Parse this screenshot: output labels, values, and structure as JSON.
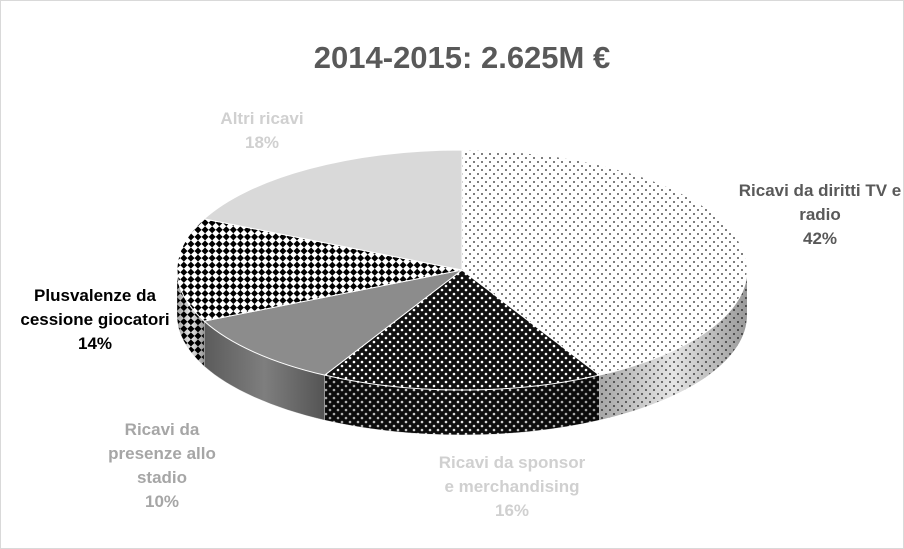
{
  "chart_data": {
    "type": "pie3d",
    "title": "2014-2015: 2.625M €",
    "categories": [
      "Ricavi da diritti TV e radio",
      "Ricavi da sponsor e merchandising",
      "Ricavi da presenze allo stadio",
      "Plusvalenze da cessione giocatori",
      "Altri ricavi"
    ],
    "values": [
      42,
      16,
      10,
      14,
      18
    ],
    "value_labels": [
      "42%",
      "16%",
      "10%",
      "14%",
      "18%"
    ],
    "colors": [
      "#ffffff",
      "#111111",
      "#8c8c8c",
      "#ffffff",
      "#d9d9d9"
    ]
  }
}
